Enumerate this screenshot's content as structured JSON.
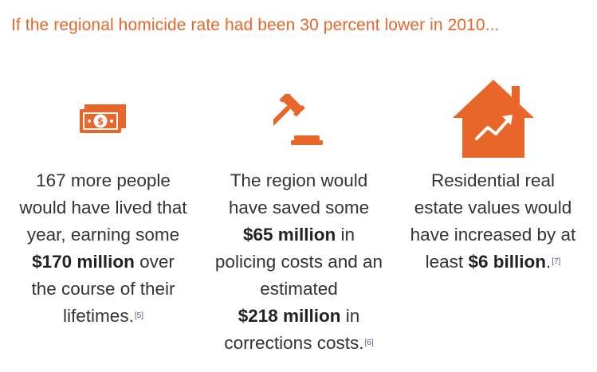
{
  "headline": "If the regional homicide rate had been 30 percent lower in 2010...",
  "accent_color": "#e8662a",
  "columns": [
    {
      "icon": "money-bill-icon",
      "lines": [
        "167 more people",
        "would have lived that",
        "year, earning some"
      ],
      "bold": "$170 million",
      "after_bold": " over",
      "tail_lines": [
        "the course of their"
      ],
      "last": "lifetimes.",
      "ref": "[5]"
    },
    {
      "icon": "gavel-icon",
      "lines": [
        "The region would",
        "have saved some"
      ],
      "bold": "$65 million",
      "after_bold": " in",
      "tail_lines": [
        "policing costs and an",
        "estimated"
      ],
      "bold2": "$218 million",
      "after_bold2": " in",
      "last": "corrections costs.",
      "ref": "[6]"
    },
    {
      "icon": "house-chart-icon",
      "lines": [
        "Residential real",
        "estate values would",
        "have increased by at"
      ],
      "pre_bold": "least ",
      "bold": "$6 billion",
      "after_bold": ".",
      "ref": "[7]"
    }
  ]
}
